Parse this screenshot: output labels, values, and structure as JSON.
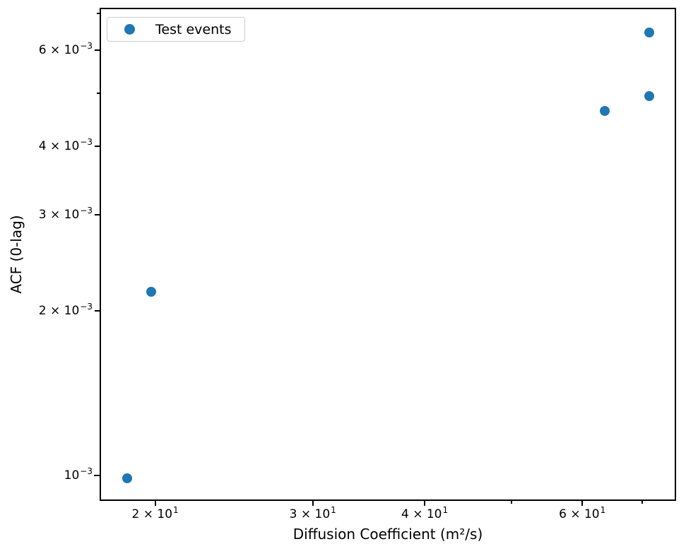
{
  "figure": {
    "background": "#ffffff"
  },
  "colors": {
    "marker": "#1f77b4",
    "spine": "#000000",
    "text": "#000000",
    "legend_border": "#cccccc"
  },
  "chart_data": {
    "type": "scatter",
    "title": "",
    "xlabel": "Diffusion Coefficient (m²/s)",
    "ylabel": "ACF (0-lag)",
    "xscale": "log",
    "yscale": "log",
    "xlim": [
      17.4,
      76.1
    ],
    "ylim": [
      0.000905,
      0.00713
    ],
    "grid": false,
    "legend": {
      "position": "upper-left",
      "entries": [
        {
          "label": "Test events",
          "marker": "circle",
          "color": "#1f77b4"
        }
      ]
    },
    "series": [
      {
        "name": "Test events",
        "marker": "circle",
        "color": "#1f77b4",
        "points": [
          {
            "x": 18.6,
            "y": 0.00099
          },
          {
            "x": 19.8,
            "y": 0.00217
          },
          {
            "x": 63.6,
            "y": 0.00464
          },
          {
            "x": 71.3,
            "y": 0.00495
          },
          {
            "x": 71.3,
            "y": 0.00647
          }
        ]
      }
    ],
    "x_ticks": [
      {
        "value": 20,
        "base": "2 × 10",
        "exp": "1"
      },
      {
        "value": 30,
        "base": "3 × 10",
        "exp": "1"
      },
      {
        "value": 40,
        "base": "4 × 10",
        "exp": "1"
      },
      {
        "value": 50
      },
      {
        "value": 60,
        "base": "6 × 10",
        "exp": "1"
      },
      {
        "value": 70
      }
    ],
    "y_ticks": [
      {
        "value": 0.001,
        "base": "10",
        "exp": "−3",
        "major": true
      },
      {
        "value": 0.002,
        "base": "2 × 10",
        "exp": "−3"
      },
      {
        "value": 0.003,
        "base": "3 × 10",
        "exp": "−3"
      },
      {
        "value": 0.004,
        "base": "4 × 10",
        "exp": "−3"
      },
      {
        "value": 0.005
      },
      {
        "value": 0.006,
        "base": "6 × 10",
        "exp": "−3"
      },
      {
        "value": 0.007
      }
    ]
  }
}
